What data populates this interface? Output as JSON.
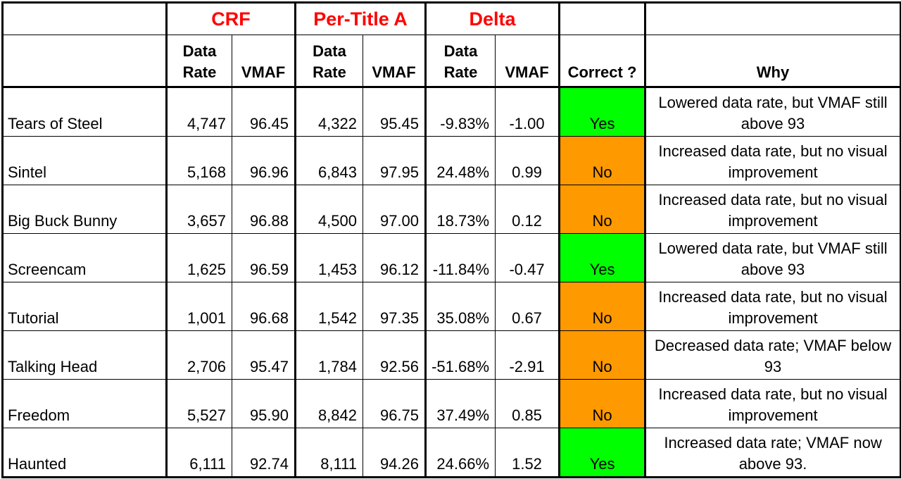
{
  "chart_data": {
    "type": "table",
    "group_headers": [
      "",
      "CRF",
      "Per-Title A",
      "Delta",
      "",
      ""
    ],
    "sub_headers": {
      "data_rate": "Data Rate",
      "vmaf": "VMAF",
      "correct": "Correct ?",
      "why": "Why"
    },
    "colors": {
      "group_header": "#ff0000",
      "yes": "#00ff00",
      "no": "#ff9900"
    },
    "rows": [
      {
        "title": "Tears of Steel",
        "crf_rate": "4,747",
        "crf_vmaf": "96.45",
        "pt_rate": "4,322",
        "pt_vmaf": "95.45",
        "delta_rate": "-9.83%",
        "delta_vmaf": "-1.00",
        "correct": "Yes",
        "why": "Lowered data rate, but VMAF still above 93"
      },
      {
        "title": "Sintel",
        "crf_rate": "5,168",
        "crf_vmaf": "96.96",
        "pt_rate": "6,843",
        "pt_vmaf": "97.95",
        "delta_rate": "24.48%",
        "delta_vmaf": "0.99",
        "correct": "No",
        "why": "Increased data rate, but no visual improvement"
      },
      {
        "title": "Big Buck Bunny",
        "crf_rate": "3,657",
        "crf_vmaf": "96.88",
        "pt_rate": "4,500",
        "pt_vmaf": "97.00",
        "delta_rate": "18.73%",
        "delta_vmaf": "0.12",
        "correct": "No",
        "why": "Increased data rate, but no visual improvement"
      },
      {
        "title": "Screencam",
        "crf_rate": "1,625",
        "crf_vmaf": "96.59",
        "pt_rate": "1,453",
        "pt_vmaf": "96.12",
        "delta_rate": "-11.84%",
        "delta_vmaf": "-0.47",
        "correct": "Yes",
        "why": "Lowered data rate, but VMAF still above 93"
      },
      {
        "title": "Tutorial",
        "crf_rate": "1,001",
        "crf_vmaf": "96.68",
        "pt_rate": "1,542",
        "pt_vmaf": "97.35",
        "delta_rate": "35.08%",
        "delta_vmaf": "0.67",
        "correct": "No",
        "why": "Increased data rate, but no visual improvement"
      },
      {
        "title": "Talking Head",
        "crf_rate": "2,706",
        "crf_vmaf": "95.47",
        "pt_rate": "1,784",
        "pt_vmaf": "92.56",
        "delta_rate": "-51.68%",
        "delta_vmaf": "-2.91",
        "correct": "No",
        "why": "Decreased data rate; VMAF below 93"
      },
      {
        "title": "Freedom",
        "crf_rate": "5,527",
        "crf_vmaf": "95.90",
        "pt_rate": "8,842",
        "pt_vmaf": "96.75",
        "delta_rate": "37.49%",
        "delta_vmaf": "0.85",
        "correct": "No",
        "why": "Increased data rate, but no visual improvement"
      },
      {
        "title": "Haunted",
        "crf_rate": "6,111",
        "crf_vmaf": "92.74",
        "pt_rate": "8,111",
        "pt_vmaf": "94.26",
        "delta_rate": "24.66%",
        "delta_vmaf": "1.52",
        "correct": "Yes",
        "why": "Increased data rate; VMAF now above 93."
      }
    ]
  }
}
